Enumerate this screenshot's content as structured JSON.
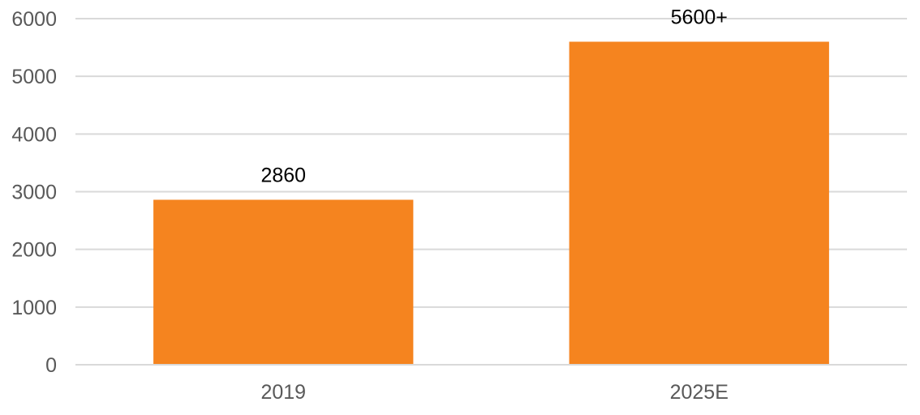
{
  "chart_data": {
    "type": "bar",
    "categories": [
      "2019",
      "2025E"
    ],
    "values": [
      2860,
      5600
    ],
    "data_labels": [
      "2860",
      "5600+"
    ],
    "title": "",
    "xlabel": "",
    "ylabel": "",
    "ylim": [
      0,
      6000
    ],
    "yticks": [
      0,
      1000,
      2000,
      3000,
      4000,
      5000,
      6000
    ],
    "ytick_labels": [
      "0",
      "1000",
      "2000",
      "3000",
      "4000",
      "5000",
      "6000"
    ],
    "grid": true,
    "legend": "none",
    "colors": {
      "bar": "#f5841f",
      "grid": "#d9d9d9",
      "tick_text": "#595959",
      "label_text": "#000000"
    }
  }
}
